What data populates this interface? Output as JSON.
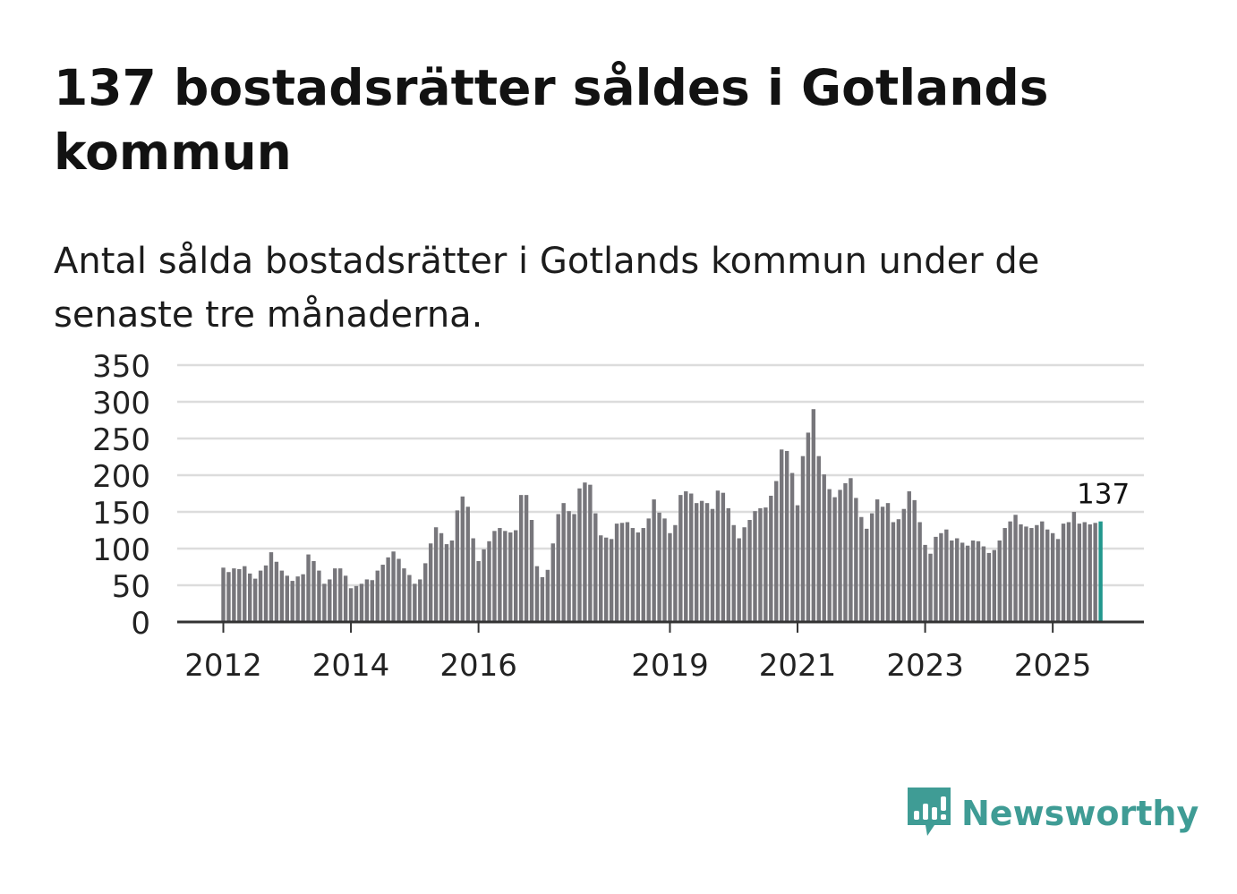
{
  "header": {
    "title": "137 bostadsrätter såldes i Gotlands kommun",
    "subtitle": "Antal sålda bostadsrätter i Gotlands kommun under de senaste tre månaderna."
  },
  "brand": {
    "name": "Newsworthy",
    "icon": "newsworthy-logo-icon"
  },
  "colors": {
    "bar": "#77767b",
    "highlight": "#22978d",
    "grid": "#dcdcdc",
    "axis": "#333333",
    "brand": "#3f9c95"
  },
  "chart_data": {
    "type": "bar",
    "title": "",
    "xlabel": "",
    "ylabel": "",
    "ylim": [
      0,
      350
    ],
    "yticks": [
      0,
      50,
      100,
      150,
      200,
      250,
      300,
      350
    ],
    "grid": true,
    "start": "2012-01",
    "x_tick_labels": [
      {
        "label": "2012",
        "index": 0
      },
      {
        "label": "2014",
        "index": 24
      },
      {
        "label": "2016",
        "index": 48
      },
      {
        "label": "2019",
        "index": 84
      },
      {
        "label": "2021",
        "index": 108
      },
      {
        "label": "2023",
        "index": 132
      },
      {
        "label": "2025",
        "index": 156
      }
    ],
    "highlight_index": 165,
    "highlight_label": "137",
    "series": [
      {
        "name": "Antal sålda bostadsrätter",
        "values": [
          74,
          68,
          73,
          72,
          76,
          66,
          59,
          70,
          77,
          95,
          82,
          70,
          63,
          56,
          62,
          65,
          92,
          83,
          70,
          52,
          58,
          73,
          73,
          63,
          46,
          49,
          52,
          58,
          57,
          70,
          78,
          88,
          96,
          86,
          73,
          64,
          52,
          58,
          80,
          107,
          129,
          121,
          106,
          111,
          152,
          171,
          157,
          114,
          83,
          99,
          110,
          124,
          128,
          124,
          122,
          125,
          173,
          173,
          139,
          76,
          61,
          71,
          107,
          147,
          162,
          151,
          147,
          182,
          190,
          187,
          148,
          118,
          115,
          113,
          134,
          135,
          136,
          128,
          122,
          128,
          141,
          167,
          149,
          141,
          121,
          132,
          173,
          178,
          175,
          162,
          165,
          162,
          154,
          179,
          176,
          155,
          132,
          114,
          129,
          139,
          151,
          155,
          156,
          172,
          192,
          235,
          233,
          203,
          159,
          226,
          258,
          290,
          226,
          201,
          181,
          170,
          180,
          189,
          196,
          169,
          143,
          127,
          148,
          167,
          157,
          162,
          136,
          140,
          154,
          178,
          166,
          136,
          105,
          93,
          116,
          121,
          126,
          111,
          114,
          108,
          104,
          111,
          110,
          103,
          94,
          98,
          111,
          128,
          137,
          146,
          133,
          130,
          128,
          132,
          137,
          126,
          121,
          113,
          134,
          136,
          150,
          134,
          136,
          133,
          135,
          137
        ]
      }
    ]
  }
}
